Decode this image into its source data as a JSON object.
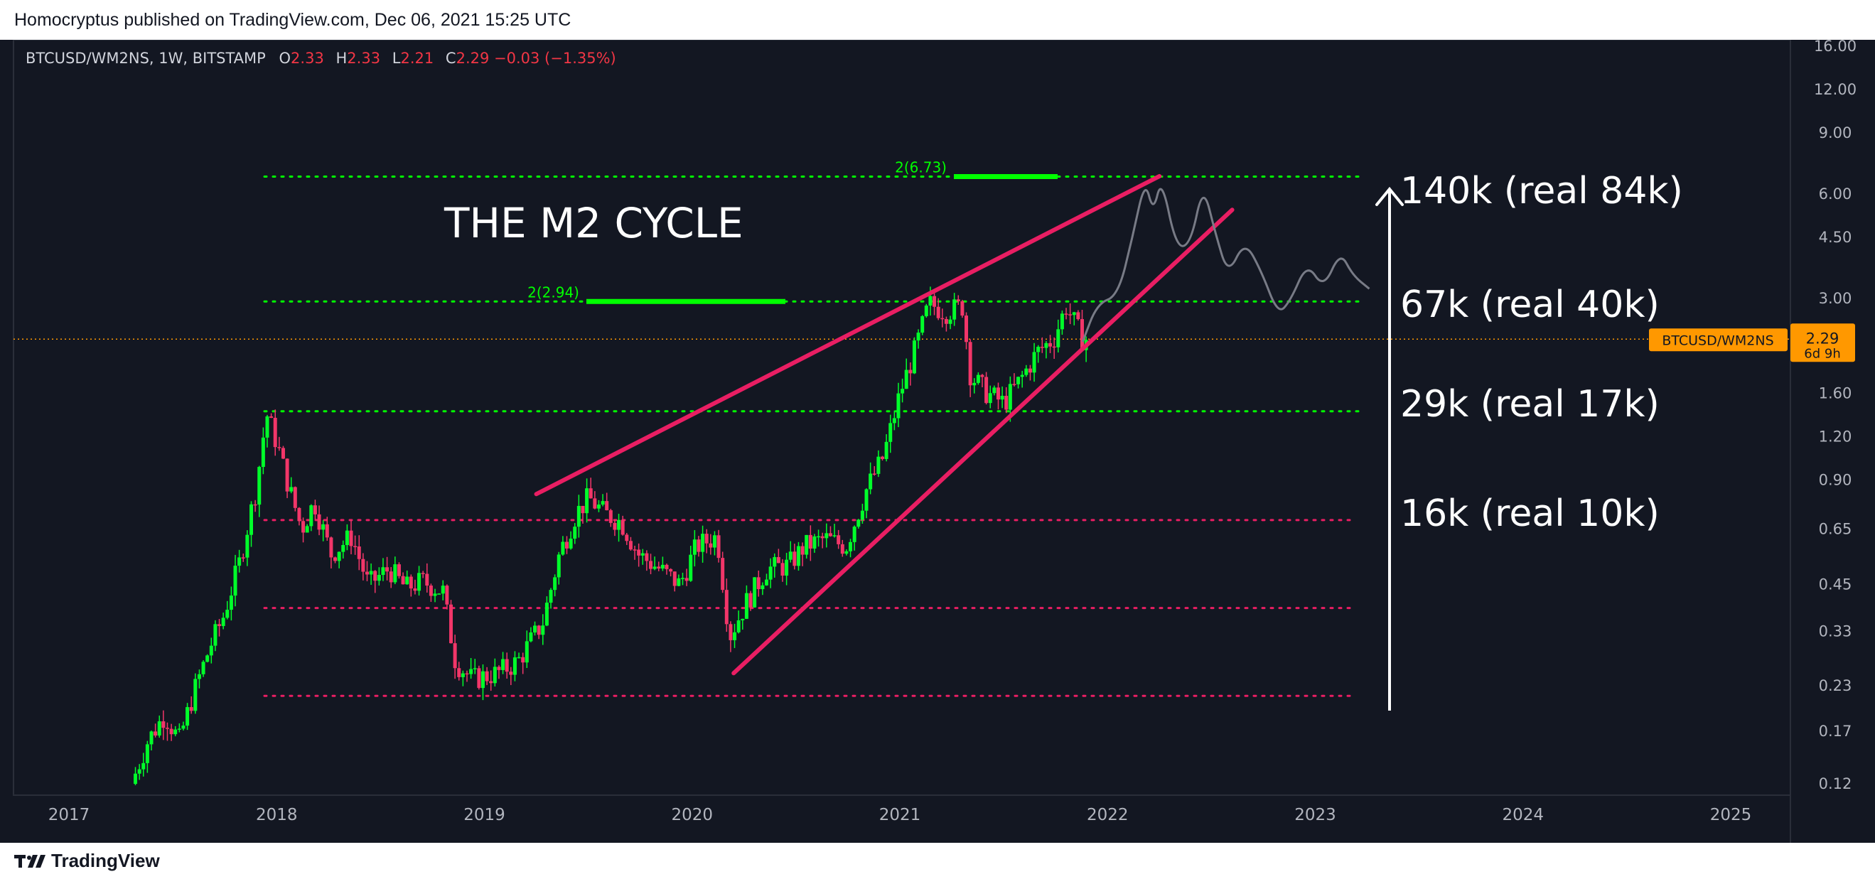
{
  "header": {
    "published": "Homocryptus published on TradingView.com, Dec 06, 2021 15:25 UTC"
  },
  "footer": {
    "logo_text": "TradingView"
  },
  "legend": {
    "symbol": "BTCUSD/WM2NS, 1W, BITSTAMP",
    "o_label": "O",
    "o_value": "2.33",
    "h_label": "H",
    "h_value": "2.33",
    "l_label": "L",
    "l_value": "2.21",
    "c_label": "C",
    "c_value": "2.29 −0.03 (−1.35%)"
  },
  "colors": {
    "background": "#131722",
    "up": "#00ff2a",
    "down": "#f23669",
    "trendline": "#e91e63",
    "green_level": "#00ff00",
    "red_level": "#e91e63",
    "projection": "#787b86",
    "price_tag": "#ff9800",
    "text": "#ffffff",
    "axis_text": "#b2b5be"
  },
  "chart_data": {
    "type": "candlestick",
    "scale": "log",
    "title": "THE M2 CYCLE",
    "x_ticks": [
      "2017",
      "2018",
      "2019",
      "2020",
      "2021",
      "2022",
      "2023",
      "2024",
      "2025"
    ],
    "y_ticks": [
      "16.00",
      "12.00",
      "9.00",
      "6.00",
      "4.50",
      "3.00",
      "2.29",
      "1.60",
      "1.20",
      "0.90",
      "0.65",
      "0.45",
      "0.33",
      "0.23",
      "0.17",
      "0.12"
    ],
    "ylim": [
      0.12,
      16
    ],
    "current_price": {
      "symbol": "BTCUSD/WM2NS",
      "value": 2.29,
      "value_label": "2.29",
      "countdown": "6d 9h"
    },
    "annotations": [
      {
        "text": "140k (real 84k)",
        "y": 6.6
      },
      {
        "text": "67k (real 40k)",
        "y": 2.8
      },
      {
        "text": "29k (real 17k)",
        "y": 1.5
      },
      {
        "text": "16k (real 10k)",
        "y": 0.66
      }
    ],
    "fib_labels": [
      {
        "text": "2(6.73)",
        "value": 6.73
      },
      {
        "text": "2(2.94)",
        "value": 2.94
      }
    ],
    "green_levels": [
      6.73,
      2.94,
      1.42
    ],
    "red_levels": [
      0.69,
      0.385,
      0.215
    ],
    "trendlines": [
      {
        "from": {
          "t": 2019.25,
          "y": 0.82
        },
        "to": {
          "t": 2022.25,
          "y": 6.75
        }
      },
      {
        "from": {
          "t": 2020.2,
          "y": 0.25
        },
        "to": {
          "t": 2022.6,
          "y": 5.4
        }
      }
    ],
    "projection_path": [
      [
        2021.88,
        2.25
      ],
      [
        2021.95,
        2.9
      ],
      [
        2022.05,
        3.05
      ],
      [
        2022.12,
        4.5
      ],
      [
        2022.18,
        6.6
      ],
      [
        2022.22,
        5.3
      ],
      [
        2022.26,
        6.7
      ],
      [
        2022.33,
        4.2
      ],
      [
        2022.4,
        4.3
      ],
      [
        2022.46,
        6.4
      ],
      [
        2022.52,
        4.6
      ],
      [
        2022.58,
        3.5
      ],
      [
        2022.66,
        4.4
      ],
      [
        2022.74,
        3.6
      ],
      [
        2022.82,
        2.7
      ],
      [
        2022.88,
        2.95
      ],
      [
        2022.96,
        3.8
      ],
      [
        2023.04,
        3.2
      ],
      [
        2023.12,
        4.1
      ],
      [
        2023.18,
        3.5
      ],
      [
        2023.26,
        3.2
      ]
    ],
    "price_path": [
      [
        2017.32,
        0.12
      ],
      [
        2017.4,
        0.16
      ],
      [
        2017.48,
        0.19
      ],
      [
        2017.55,
        0.16
      ],
      [
        2017.62,
        0.22
      ],
      [
        2017.7,
        0.3
      ],
      [
        2017.76,
        0.36
      ],
      [
        2017.84,
        0.52
      ],
      [
        2017.92,
        0.85
      ],
      [
        2017.97,
        1.4
      ],
      [
        2018.02,
        1.15
      ],
      [
        2018.08,
        0.85
      ],
      [
        2018.14,
        0.65
      ],
      [
        2018.2,
        0.78
      ],
      [
        2018.28,
        0.55
      ],
      [
        2018.38,
        0.62
      ],
      [
        2018.46,
        0.45
      ],
      [
        2018.56,
        0.5
      ],
      [
        2018.64,
        0.44
      ],
      [
        2018.72,
        0.46
      ],
      [
        2018.82,
        0.43
      ],
      [
        2018.88,
        0.27
      ],
      [
        2018.96,
        0.24
      ],
      [
        2019.08,
        0.25
      ],
      [
        2019.18,
        0.27
      ],
      [
        2019.3,
        0.35
      ],
      [
        2019.38,
        0.55
      ],
      [
        2019.46,
        0.72
      ],
      [
        2019.52,
        0.8
      ],
      [
        2019.6,
        0.72
      ],
      [
        2019.68,
        0.68
      ],
      [
        2019.76,
        0.55
      ],
      [
        2019.86,
        0.5
      ],
      [
        2019.96,
        0.45
      ],
      [
        2020.04,
        0.58
      ],
      [
        2020.14,
        0.62
      ],
      [
        2020.2,
        0.32
      ],
      [
        2020.28,
        0.4
      ],
      [
        2020.38,
        0.5
      ],
      [
        2020.48,
        0.51
      ],
      [
        2020.56,
        0.58
      ],
      [
        2020.66,
        0.61
      ],
      [
        2020.76,
        0.58
      ],
      [
        2020.86,
        0.85
      ],
      [
        2020.94,
        1.05
      ],
      [
        2021.02,
        1.6
      ],
      [
        2021.1,
        2.2
      ],
      [
        2021.16,
        2.9
      ],
      [
        2021.24,
        2.75
      ],
      [
        2021.32,
        2.85
      ],
      [
        2021.36,
        1.8
      ],
      [
        2021.44,
        1.6
      ],
      [
        2021.52,
        1.5
      ],
      [
        2021.6,
        1.75
      ],
      [
        2021.68,
        2.1
      ],
      [
        2021.76,
        2.3
      ],
      [
        2021.82,
        2.85
      ],
      [
        2021.86,
        2.55
      ],
      [
        2021.9,
        2.29
      ]
    ]
  }
}
